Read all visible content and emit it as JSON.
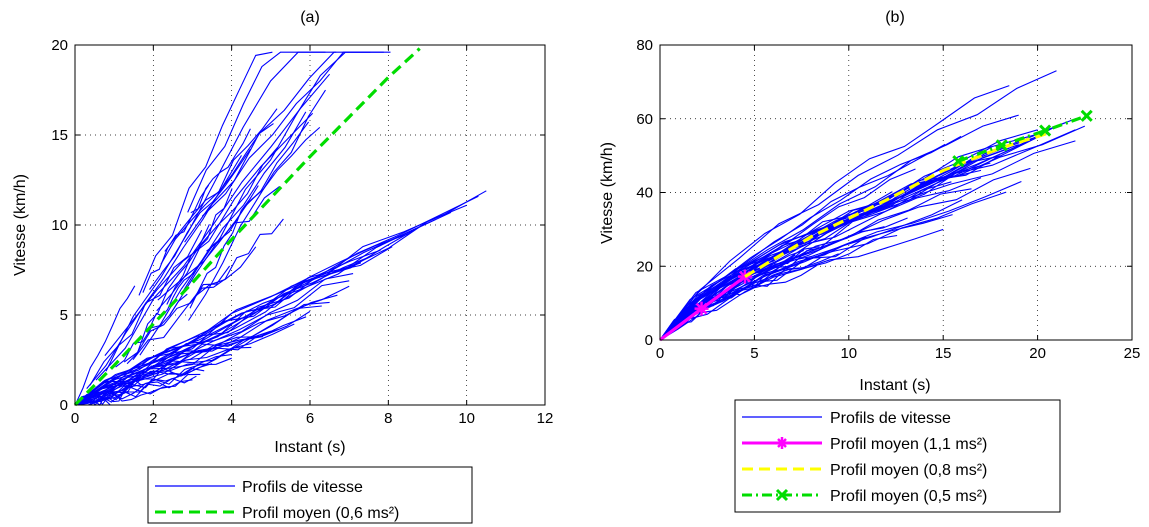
{
  "chart_data": [
    {
      "type": "line",
      "title": "(a)",
      "xlabel": "Instant (s)",
      "ylabel": "Vitesse (km/h)",
      "xlim": [
        0,
        12
      ],
      "ylim": [
        0,
        20
      ],
      "xticks": [
        "0",
        "2",
        "4",
        "6",
        "8",
        "10",
        "12"
      ],
      "yticks": [
        "0",
        "5",
        "10",
        "15",
        "20"
      ],
      "grid": true,
      "legend": {
        "placement": "below"
      },
      "series": [
        {
          "name": "Profils de vitesse",
          "color": "#0000ff",
          "style": "solid",
          "kind": "bundle",
          "profiles": [
            [
              0.9,
              0.0
            ],
            [
              1.4,
              0.6
            ],
            [
              1.7,
              1.1
            ],
            [
              2.4,
              1.0
            ],
            [
              3.0,
              1.4
            ],
            [
              3.1,
              1.6
            ],
            [
              3.2,
              1.7
            ],
            [
              3.3,
              1.9
            ],
            [
              3.5,
              2.3
            ],
            [
              4.0,
              2.6
            ],
            [
              4.0,
              2.8
            ],
            [
              4.5,
              3.2
            ],
            [
              4.8,
              3.8
            ],
            [
              5.0,
              4.1
            ],
            [
              5.2,
              4.2
            ],
            [
              5.6,
              4.5
            ],
            [
              5.9,
              4.9
            ],
            [
              6.0,
              5.2
            ],
            [
              6.3,
              5.5
            ],
            [
              6.5,
              5.7
            ],
            [
              6.7,
              6.1
            ],
            [
              7.0,
              6.6
            ],
            [
              7.0,
              6.9
            ],
            [
              7.1,
              7.3
            ],
            [
              7.3,
              7.9
            ],
            [
              7.6,
              8.3
            ],
            [
              7.8,
              8.6
            ],
            [
              8.1,
              8.8
            ],
            [
              8.5,
              9.5
            ],
            [
              8.8,
              9.9
            ],
            [
              9.2,
              10.3
            ],
            [
              9.6,
              10.7
            ],
            [
              10.0,
              11.1
            ],
            [
              10.3,
              11.6
            ],
            [
              10.5,
              11.9
            ]
          ]
        },
        {
          "name": "Profil moyen (0,6 ms²)",
          "color": "#00dd00",
          "style": "dashed",
          "x": [
            0,
            1,
            2,
            3,
            4,
            5,
            6,
            7,
            8,
            8.8
          ],
          "y": [
            0,
            2.2,
            4.5,
            6.8,
            9.2,
            11.5,
            13.8,
            16.0,
            18.2,
            19.8
          ]
        }
      ]
    },
    {
      "type": "line",
      "title": "(b)",
      "xlabel": "Instant (s)",
      "ylabel": "Vitesse (km/h)",
      "xlim": [
        0,
        25
      ],
      "ylim": [
        0,
        80
      ],
      "xticks": [
        "0",
        "5",
        "10",
        "15",
        "20",
        "25"
      ],
      "yticks": [
        "0",
        "20",
        "40",
        "60",
        "80"
      ],
      "grid": true,
      "legend": {
        "placement": "below"
      },
      "series": [
        {
          "name": "Profils de vitesse",
          "color": "#0000ff",
          "style": "solid",
          "kind": "bundle",
          "profiles": [
            [
              15.0,
              30.0
            ],
            [
              15.5,
              34.0
            ],
            [
              16.0,
              38.0
            ],
            [
              16.5,
              41.0
            ],
            [
              17.0,
              44.0
            ],
            [
              17.0,
              46.0
            ],
            [
              17.5,
              48.0
            ],
            [
              18.0,
              50.0
            ],
            [
              18.5,
              52.0
            ],
            [
              19.0,
              53.0
            ],
            [
              19.5,
              54.0
            ],
            [
              20.0,
              55.0
            ],
            [
              20.0,
              57.0
            ],
            [
              20.5,
              56.0
            ],
            [
              21.0,
              58.0
            ],
            [
              21.5,
              59.0
            ],
            [
              22.0,
              57.0
            ],
            [
              22.0,
              60.0
            ],
            [
              22.5,
              58.0
            ],
            [
              18.5,
              69.0
            ],
            [
              21.0,
              73.0
            ],
            [
              19.0,
              61.0
            ],
            [
              22.0,
              54.0
            ]
          ]
        },
        {
          "name": "Profil moyen (1,1 ms²)",
          "color": "#ff00ff",
          "style": "solid",
          "marker": "*",
          "x": [
            0,
            2.2,
            4.5
          ],
          "y": [
            0,
            8.5,
            17.2
          ]
        },
        {
          "name": "Profil moyen (0,8 ms²)",
          "color": "#ffff00",
          "style": "dashed",
          "x": [
            4.5,
            8,
            12,
            15,
            18,
            20.5
          ],
          "y": [
            17.2,
            28,
            38,
            46,
            52,
            56
          ]
        },
        {
          "name": "Profil moyen (0,5 ms²)",
          "color": "#00dd00",
          "style": "dashdot",
          "marker": "x",
          "x": [
            15.8,
            18.1,
            20.4,
            22.6
          ],
          "y": [
            48.5,
            52.8,
            56.8,
            60.8
          ]
        }
      ]
    }
  ]
}
